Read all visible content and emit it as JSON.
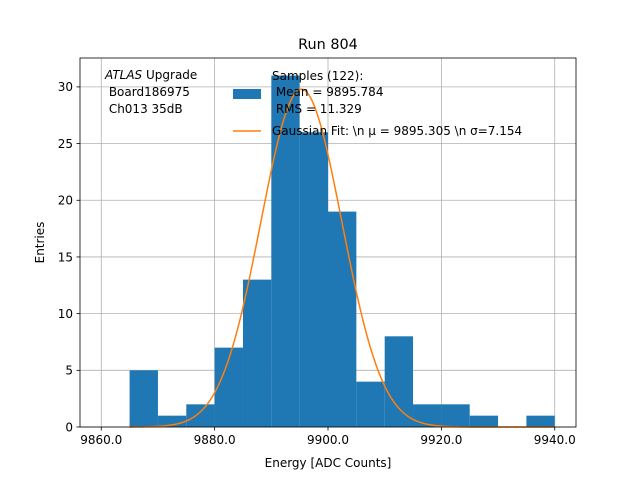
{
  "chart_data": {
    "type": "bar",
    "title": "Run 804",
    "xlabel": "Energy [ADC Counts]",
    "ylabel": "Entries",
    "xlim": [
      9856.25,
      9943.75
    ],
    "ylim": [
      0,
      32.55
    ],
    "grid": true,
    "x_ticks": [
      {
        "value": 9860,
        "label": "9860.0"
      },
      {
        "value": 9880,
        "label": "9880.0"
      },
      {
        "value": 9900,
        "label": "9900.0"
      },
      {
        "value": 9920,
        "label": "9920.0"
      },
      {
        "value": 9940,
        "label": "9940.0"
      }
    ],
    "y_ticks": [
      {
        "value": 0,
        "label": "0"
      },
      {
        "value": 5,
        "label": "5"
      },
      {
        "value": 10,
        "label": "10"
      },
      {
        "value": 15,
        "label": "15"
      },
      {
        "value": 20,
        "label": "20"
      },
      {
        "value": 25,
        "label": "25"
      },
      {
        "value": 30,
        "label": "30"
      }
    ],
    "histogram": {
      "bin_edges": [
        9865,
        9870,
        9875,
        9880,
        9885,
        9890,
        9895,
        9900,
        9905,
        9910,
        9915,
        9920,
        9925,
        9930,
        9935,
        9940
      ],
      "counts": [
        5,
        1,
        2,
        7,
        13,
        31,
        26,
        19,
        4,
        8,
        2,
        2,
        1,
        0,
        1
      ],
      "color": "#1f77b4"
    },
    "fit": {
      "type": "gaussian",
      "amplitude": 29.8,
      "mu": 9895.305,
      "sigma": 7.154,
      "color": "#ff7f0e"
    },
    "legend": {
      "position": "top-right",
      "entries": [
        {
          "kind": "patch",
          "color": "#1f77b4",
          "lines": [
            "Samples (122):",
            " Mean = 9895.784",
            " RMS = 11.329"
          ]
        },
        {
          "kind": "line",
          "color": "#ff7f0e",
          "lines": [
            "Gaussian Fit: \\n μ = 9895.305 \\n σ=7.154"
          ]
        }
      ]
    },
    "annotation": {
      "italic": "ATLAS",
      "rest": " Upgrade",
      "line2": " Board186975",
      "line3": " Ch013 35dB"
    }
  }
}
